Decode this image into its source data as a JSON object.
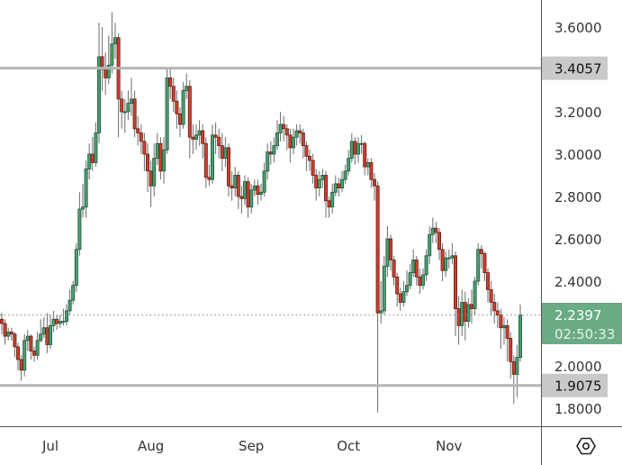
{
  "chart_data": {
    "type": "candlestick",
    "title": "",
    "xlabel": "",
    "ylabel": "",
    "ylim": [
      1.7,
      3.72
    ],
    "grid": false,
    "x_tick_labels": [
      "Jul",
      "Aug",
      "Sep",
      "Oct",
      "Nov"
    ],
    "y_tick_labels": [
      "3.6000",
      "3.2000",
      "3.0000",
      "2.8000",
      "2.6000",
      "2.4000",
      "2.0000",
      "1.8000"
    ],
    "y_ticks": [
      3.6,
      3.2,
      3.0,
      2.8,
      2.6,
      2.4,
      2.0,
      1.8
    ],
    "first_open": 2.22,
    "close": [
      2.2,
      2.14,
      2.16,
      2.15,
      2.09,
      2.03,
      1.98,
      2.12,
      2.14,
      2.07,
      2.05,
      2.12,
      2.15,
      2.18,
      2.1,
      2.19,
      2.22,
      2.2,
      2.21,
      2.21,
      2.26,
      2.31,
      2.38,
      2.55,
      2.74,
      2.75,
      2.93,
      3.0,
      2.96,
      3.1,
      3.46,
      3.4,
      3.36,
      3.42,
      3.52,
      3.55,
      3.26,
      3.2,
      3.2,
      3.24,
      3.26,
      3.12,
      3.1,
      3.06,
      3.0,
      2.92,
      2.85,
      2.98,
      3.05,
      2.92,
      3.02,
      3.36,
      3.32,
      3.25,
      3.19,
      3.14,
      3.3,
      3.32,
      3.08,
      3.07,
      3.09,
      3.11,
      3.05,
      2.89,
      2.88,
      3.09,
      3.08,
      3.04,
      2.98,
      3.03,
      2.85,
      2.84,
      2.9,
      2.8,
      2.79,
      2.87,
      2.75,
      2.83,
      2.85,
      2.81,
      2.82,
      2.92,
      3.01,
      3.0,
      3.04,
      3.1,
      3.14,
      3.12,
      3.09,
      3.03,
      3.08,
      3.11,
      3.1,
      3.04,
      2.99,
      2.97,
      2.9,
      2.84,
      2.88,
      2.9,
      2.78,
      2.75,
      2.82,
      2.86,
      2.84,
      2.88,
      2.92,
      2.98,
      3.06,
      3.0,
      3.05,
      3.05,
      2.94,
      2.96,
      2.88,
      2.85,
      2.25,
      2.26,
      2.47,
      2.6,
      2.5,
      2.42,
      2.34,
      2.3,
      2.35,
      2.38,
      2.44,
      2.5,
      2.42,
      2.38,
      2.43,
      2.52,
      2.62,
      2.65,
      2.63,
      2.55,
      2.45,
      2.51,
      2.51,
      2.52,
      2.27,
      2.19,
      2.3,
      2.21,
      2.29,
      2.27,
      2.4,
      2.55,
      2.53,
      2.44,
      2.36,
      2.3,
      2.26,
      2.24,
      2.18,
      2.19,
      2.13,
      2.02,
      1.96,
      2.04,
      2.24
    ],
    "high": [
      2.25,
      2.22,
      2.18,
      2.18,
      2.16,
      2.11,
      2.05,
      2.15,
      2.17,
      2.15,
      2.09,
      2.16,
      2.22,
      2.23,
      2.25,
      2.24,
      2.26,
      2.24,
      2.24,
      2.27,
      2.29,
      2.36,
      2.4,
      2.58,
      2.82,
      2.86,
      2.97,
      3.05,
      3.08,
      3.15,
      3.62,
      3.6,
      3.48,
      3.56,
      3.67,
      3.62,
      3.57,
      3.3,
      3.26,
      3.3,
      3.36,
      3.3,
      3.18,
      3.14,
      3.1,
      3.05,
      2.97,
      3.05,
      3.1,
      3.08,
      3.08,
      3.4,
      3.4,
      3.36,
      3.3,
      3.22,
      3.34,
      3.38,
      3.35,
      3.14,
      3.14,
      3.16,
      3.14,
      3.08,
      2.95,
      3.14,
      3.15,
      3.12,
      3.1,
      3.08,
      3.05,
      2.92,
      2.94,
      2.92,
      2.85,
      2.9,
      2.89,
      2.86,
      2.88,
      2.88,
      2.86,
      2.96,
      3.05,
      3.06,
      3.08,
      3.16,
      3.2,
      3.18,
      3.14,
      3.12,
      3.12,
      3.14,
      3.14,
      3.12,
      3.06,
      3.02,
      3.0,
      2.93,
      2.92,
      2.93,
      2.92,
      2.8,
      2.86,
      2.9,
      2.89,
      2.92,
      2.95,
      3.02,
      3.1,
      3.08,
      3.08,
      3.09,
      3.06,
      2.98,
      2.98,
      2.91,
      2.87,
      2.4,
      2.52,
      2.66,
      2.62,
      2.52,
      2.44,
      2.37,
      2.4,
      2.45,
      2.48,
      2.55,
      2.52,
      2.46,
      2.46,
      2.55,
      2.66,
      2.7,
      2.68,
      2.65,
      2.58,
      2.54,
      2.55,
      2.58,
      2.54,
      2.33,
      2.36,
      2.35,
      2.32,
      2.36,
      2.42,
      2.58,
      2.57,
      2.54,
      2.46,
      2.4,
      2.34,
      2.3,
      2.27,
      2.23,
      2.22,
      2.16,
      2.05,
      2.1,
      2.29
    ],
    "low": [
      2.15,
      2.1,
      2.12,
      2.12,
      2.04,
      1.98,
      1.93,
      1.95,
      2.07,
      2.03,
      2.02,
      2.03,
      2.11,
      2.13,
      2.06,
      2.08,
      2.16,
      2.17,
      2.18,
      2.19,
      2.19,
      2.24,
      2.29,
      2.35,
      2.52,
      2.7,
      2.7,
      2.88,
      2.92,
      2.94,
      3.05,
      3.3,
      3.28,
      3.33,
      3.38,
      3.45,
      3.08,
      3.12,
      3.1,
      3.16,
      3.18,
      3.08,
      3.04,
      3.0,
      2.92,
      2.82,
      2.75,
      2.8,
      2.95,
      2.88,
      2.86,
      3.0,
      3.26,
      3.2,
      3.12,
      3.08,
      3.12,
      3.26,
      2.98,
      3.0,
      3.02,
      3.04,
      2.98,
      2.84,
      2.85,
      2.86,
      3.0,
      2.98,
      2.92,
      2.94,
      2.8,
      2.78,
      2.8,
      2.74,
      2.72,
      2.76,
      2.7,
      2.72,
      2.8,
      2.76,
      2.78,
      2.8,
      2.88,
      2.95,
      2.96,
      3.02,
      3.06,
      3.06,
      3.02,
      2.96,
      3.0,
      3.04,
      3.05,
      2.98,
      2.92,
      2.92,
      2.86,
      2.78,
      2.8,
      2.84,
      2.7,
      2.7,
      2.72,
      2.8,
      2.8,
      2.82,
      2.86,
      2.9,
      2.96,
      2.95,
      2.96,
      3.0,
      2.9,
      2.9,
      2.84,
      2.78,
      1.78,
      2.2,
      2.24,
      2.42,
      2.45,
      2.38,
      2.28,
      2.26,
      2.28,
      2.33,
      2.36,
      2.42,
      2.38,
      2.34,
      2.36,
      2.4,
      2.48,
      2.58,
      2.58,
      2.5,
      2.4,
      2.42,
      2.46,
      2.48,
      2.14,
      2.1,
      2.14,
      2.12,
      2.18,
      2.2,
      2.24,
      2.38,
      2.46,
      2.4,
      2.3,
      2.24,
      2.2,
      2.18,
      2.08,
      2.1,
      2.02,
      1.94,
      1.82,
      1.85,
      2.02
    ],
    "horizontal_levels": [
      {
        "value": 3.4057,
        "label": "3.4057"
      },
      {
        "value": 1.9075,
        "label": "1.9075"
      }
    ],
    "last_price": {
      "value": 2.2397,
      "label": "2.2397",
      "countdown": "02:50:33"
    },
    "colors": {
      "up": "#4e9c74",
      "up_border": "#1e5a3a",
      "down": "#c9412f",
      "down_border": "#6a2016",
      "wick": "#6b6b6b",
      "level": "#b5b5b5",
      "last_price_bg": "#6aab85",
      "level_label_bg": "#c9c9c9"
    }
  },
  "ui": {
    "settings_icon": "hexagon-settings-icon"
  }
}
